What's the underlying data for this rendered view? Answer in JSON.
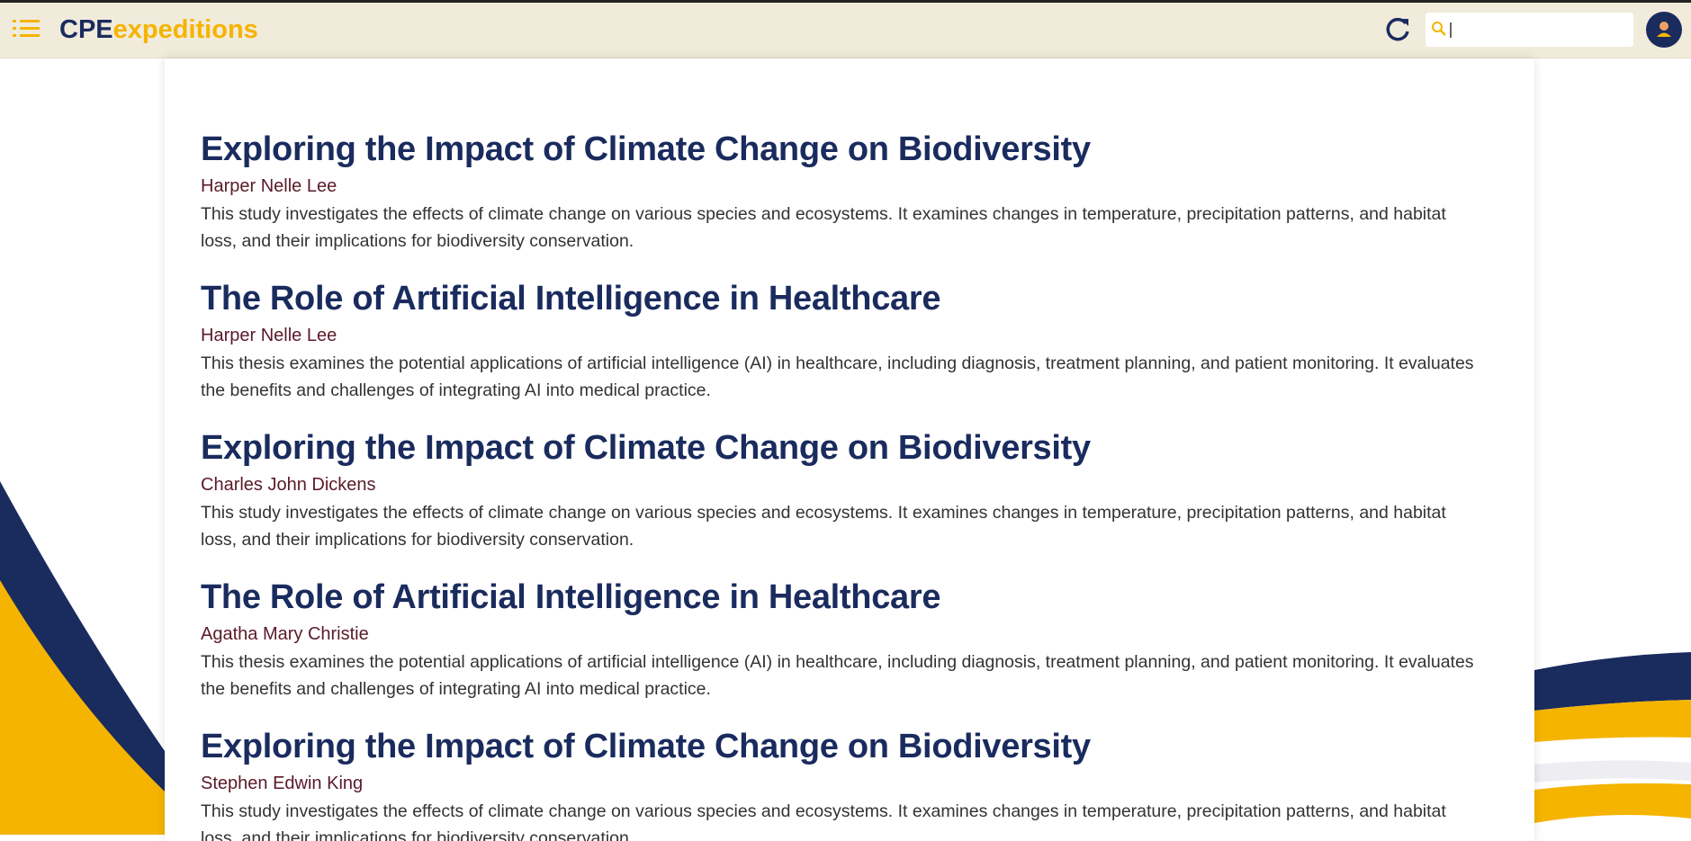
{
  "header": {
    "logo_prefix": "CPE",
    "logo_suffix": "expeditions"
  },
  "items": [
    {
      "title": "Exploring the Impact of Climate Change on Biodiversity",
      "author": "Harper Nelle Lee",
      "description": "This study investigates the effects of climate change on various species and ecosystems. It examines changes in temperature, precipitation patterns, and habitat loss, and their implications for biodiversity conservation."
    },
    {
      "title": "The Role of Artificial Intelligence in Healthcare",
      "author": "Harper Nelle Lee",
      "description": "This thesis examines the potential applications of artificial intelligence (AI) in healthcare, including diagnosis, treatment planning, and patient monitoring. It evaluates the benefits and challenges of integrating AI into medical practice."
    },
    {
      "title": "Exploring the Impact of Climate Change on Biodiversity",
      "author": "Charles John Dickens",
      "description": "This study investigates the effects of climate change on various species and ecosystems. It examines changes in temperature, precipitation patterns, and habitat loss, and their implications for biodiversity conservation."
    },
    {
      "title": "The Role of Artificial Intelligence in Healthcare",
      "author": "Agatha Mary Christie",
      "description": "This thesis examines the potential applications of artificial intelligence (AI) in healthcare, including diagnosis, treatment planning, and patient monitoring. It evaluates the benefits and challenges of integrating AI into medical practice."
    },
    {
      "title": "Exploring the Impact of Climate Change on Biodiversity",
      "author": "Stephen Edwin King",
      "description": "This study investigates the effects of climate change on various species and ecosystems. It examines changes in temperature, precipitation patterns, and habitat loss, and their implications for biodiversity conservation."
    }
  ]
}
